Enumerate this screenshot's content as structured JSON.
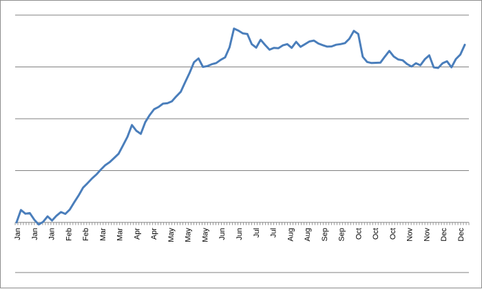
{
  "chart_data": {
    "type": "line",
    "title": "",
    "xlabel": "",
    "ylabel": "",
    "grid": true,
    "legend": "none",
    "line_color": "#4a7ebb",
    "gridline_color": "#7f7f7f",
    "ylim": [
      0,
      100
    ],
    "yticks": [
      0,
      25,
      50,
      75,
      100
    ],
    "x_tick_labels": [
      "Jan",
      "Jan",
      "Jan",
      "Feb",
      "Feb",
      "Mar",
      "Mar",
      "Apr",
      "Apr",
      "May",
      "May",
      "May",
      "Jun",
      "Jun",
      "Jul",
      "Jul",
      "Aug",
      "Aug",
      "Sep",
      "Sep",
      "Oct",
      "Oct",
      "Oct",
      "Nov",
      "Nov",
      "Dec",
      "Dec"
    ],
    "series": [
      {
        "values": [
          0.0,
          6.0,
          4.2,
          4.5,
          1.3,
          -1.0,
          0.3,
          2.9,
          0.9,
          3.2,
          5.0,
          4.1,
          6.2,
          9.7,
          13.0,
          16.8,
          18.9,
          21.2,
          23.1,
          25.5,
          27.6,
          29.1,
          31.1,
          33.1,
          37.2,
          41.3,
          47.0,
          44.2,
          42.7,
          48.3,
          51.8,
          54.6,
          55.7,
          57.3,
          57.5,
          58.4,
          60.8,
          63.0,
          67.6,
          72.2,
          77.3,
          79.1,
          75.0,
          75.4,
          76.3,
          76.9,
          78.4,
          79.6,
          84.5,
          93.5,
          92.5,
          91.2,
          90.9,
          86.0,
          84.3,
          88.1,
          85.6,
          83.3,
          84.2,
          84.0,
          85.4,
          86.0,
          84.2,
          87.1,
          84.7,
          86.0,
          87.3,
          87.7,
          86.3,
          85.5,
          84.8,
          84.9,
          85.7,
          86.0,
          86.5,
          88.6,
          92.4,
          90.9,
          79.9,
          77.4,
          76.9,
          77.0,
          77.1,
          80.0,
          82.7,
          80.0,
          78.6,
          78.2,
          76.4,
          75.2,
          76.8,
          75.8,
          78.7,
          80.6,
          74.8,
          74.5,
          76.8,
          77.7,
          74.8,
          78.8,
          81.0,
          85.7
        ]
      }
    ]
  }
}
